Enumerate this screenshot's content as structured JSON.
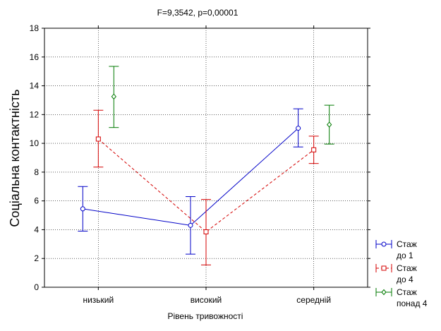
{
  "chart_data": {
    "type": "line",
    "title": "F=9,3542, p=0,00001",
    "xlabel": "Рівень тривожності",
    "ylabel": "Соціальна контактність",
    "categories": [
      "низький",
      "високий",
      "середній"
    ],
    "ylim": [
      0,
      18
    ],
    "yticks": [
      "0",
      "2",
      "4",
      "6",
      "8",
      "10",
      "12",
      "14",
      "16",
      "18"
    ],
    "grid": true,
    "legend_position": "right-bottom",
    "series": [
      {
        "name_lines": [
          "Стаж",
          "до 1"
        ],
        "color": "#0000c8",
        "line_style": "solid",
        "marker": "circle",
        "values": [
          5.45,
          4.3,
          11.05
        ],
        "ci_low": [
          3.9,
          2.3,
          9.75
        ],
        "ci_high": [
          7.0,
          6.3,
          12.4
        ]
      },
      {
        "name_lines": [
          "Стаж",
          "до 4"
        ],
        "color": "#d40000",
        "line_style": "dashed",
        "marker": "square",
        "values": [
          10.3,
          3.85,
          9.55
        ],
        "ci_low": [
          8.35,
          1.55,
          8.6
        ],
        "ci_high": [
          12.3,
          6.1,
          10.5
        ]
      },
      {
        "name_lines": [
          "Стаж",
          "понад 4"
        ],
        "color": "#007a00",
        "line_style": "none",
        "marker": "diamond",
        "values": [
          13.25,
          null,
          11.3
        ],
        "ci_low": [
          11.1,
          null,
          9.95
        ],
        "ci_high": [
          15.35,
          null,
          12.65
        ]
      }
    ]
  }
}
